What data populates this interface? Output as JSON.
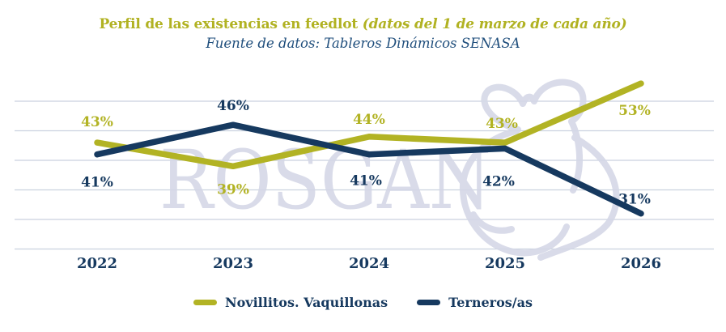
{
  "header": {
    "title_main": "Perfil de las existencias en feedlot",
    "title_note": "(datos del 1 de marzo de cada año)",
    "subtitle": "Fuente de datos: Tableros Dinámicos SENASA"
  },
  "watermark": {
    "text": "ROSGAN"
  },
  "colors": {
    "olive": "#b2b324",
    "navy": "#16395f",
    "subtitle_blue": "#1f4e7c",
    "gridline": "#cad1df",
    "watermark": "#d5d8e7",
    "background": "#ffffff"
  },
  "chart_data": {
    "type": "line",
    "title": "Perfil de las existencias en feedlot (datos del 1 de marzo de cada año)",
    "subtitle": "Fuente de datos: Tableros Dinámicos SENASA",
    "categories": [
      "2022",
      "2023",
      "2024",
      "2025",
      "2026"
    ],
    "series": [
      {
        "name": "Novillitos. Vaquillonas",
        "color": "#b2b324",
        "values": [
          43,
          39,
          44,
          43,
          53
        ],
        "labels": [
          "43%",
          "39%",
          "44%",
          "43%",
          "53%"
        ],
        "label_offsets": [
          [
            0,
            -20
          ],
          [
            0,
            34
          ],
          [
            0,
            -16
          ],
          [
            -4,
            -18
          ],
          [
            -8,
            39
          ]
        ]
      },
      {
        "name": "Terneros/as",
        "color": "#16395f",
        "values": [
          41,
          46,
          41,
          42,
          31
        ],
        "labels": [
          "41%",
          "46%",
          "41%",
          "42%",
          "31%"
        ],
        "label_offsets": [
          [
            0,
            40
          ],
          [
            0,
            -18
          ],
          [
            -4,
            38
          ],
          [
            -8,
            46
          ],
          [
            -8,
            -12
          ]
        ]
      }
    ],
    "xlabel": "",
    "ylabel": "",
    "ylim": [
      25,
      55
    ],
    "gridlines_at": [
      50,
      45,
      40,
      35,
      30,
      25
    ],
    "grid": true,
    "legend_position": "bottom",
    "value_suffix": "%"
  },
  "legend": {
    "items": [
      {
        "label": "Novillitos. Vaquillonas",
        "color": "#b2b324"
      },
      {
        "label": "Terneros/as",
        "color": "#16395f"
      }
    ]
  }
}
